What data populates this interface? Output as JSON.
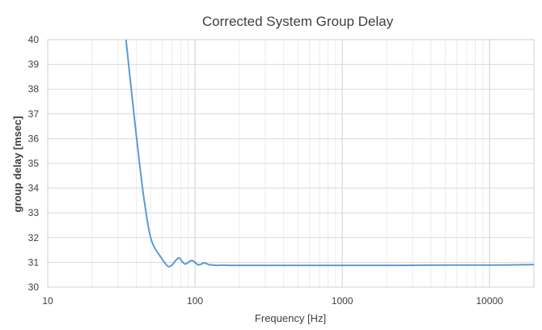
{
  "chart_data": {
    "type": "line",
    "title": "Corrected System Group Delay",
    "xlabel": "Frequency [Hz]",
    "ylabel": "group delay [msec]",
    "x_scale": "log",
    "xlim": [
      10,
      20000
    ],
    "ylim": [
      30,
      40
    ],
    "x_ticks": [
      "10",
      "100",
      "1000",
      "10000"
    ],
    "y_ticks": [
      "30",
      "31",
      "32",
      "33",
      "34",
      "35",
      "36",
      "37",
      "38",
      "39",
      "40"
    ],
    "grid": true,
    "legend": "none",
    "series": [
      {
        "color": "#5b9bd5",
        "x": [
          34,
          36,
          38,
          40,
          42,
          44,
          46,
          48,
          50,
          52,
          55,
          58,
          62,
          66,
          70,
          74,
          78,
          82,
          86,
          90,
          95,
          100,
          105,
          110,
          115,
          120,
          125,
          130,
          140,
          150,
          170,
          200,
          300,
          500,
          1000,
          2000,
          5000,
          10000,
          20000
        ],
        "y": [
          40.0,
          38.6,
          37.3,
          36.1,
          35.0,
          34.0,
          33.2,
          32.5,
          32.0,
          31.7,
          31.45,
          31.25,
          31.0,
          30.83,
          30.9,
          31.08,
          31.18,
          31.02,
          30.93,
          31.0,
          31.08,
          31.0,
          30.9,
          30.93,
          30.98,
          30.95,
          30.9,
          30.9,
          30.88,
          30.89,
          30.88,
          30.88,
          30.88,
          30.88,
          30.88,
          30.88,
          30.89,
          30.89,
          30.91
        ]
      }
    ]
  }
}
